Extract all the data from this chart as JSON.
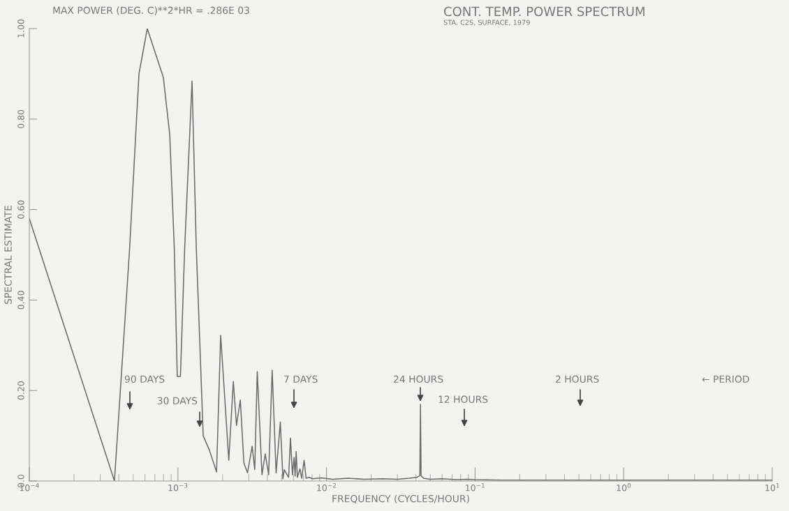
{
  "chart_data": {
    "type": "line",
    "title": "CONT. TEMP. POWER SPECTRUM",
    "subtitle": "STA. C2S, SURFACE, 1979",
    "xlabel": "FREQUENCY (CYCLES/HOUR)",
    "ylabel": "SPECTRAL ESTIMATE",
    "log": "x",
    "grid": false,
    "marker": "none",
    "line_style": "solid",
    "xlim": [
      0.0001,
      10
    ],
    "ylim": [
      0,
      1.0
    ],
    "xticks": [
      {
        "value": 0.0001,
        "label": "10$^{−4}$"
      },
      {
        "value": 0.001,
        "label": "10$^{−3}$"
      },
      {
        "value": 0.01,
        "label": "10$^{−2}$"
      },
      {
        "value": 0.1,
        "label": "10$^{−1}$"
      },
      {
        "value": 1,
        "label": "10$^{0}$"
      },
      {
        "value": 10,
        "label": "10$^{1}$"
      }
    ],
    "yticks": [
      {
        "value": 0,
        "label": "0.0"
      },
      {
        "value": 0.2,
        "label": "0.20"
      },
      {
        "value": 0.4,
        "label": "0.40"
      },
      {
        "value": 0.6,
        "label": "0.60"
      },
      {
        "value": 0.8,
        "label": "0.80"
      },
      {
        "value": 1.0,
        "label": "1.00"
      }
    ],
    "series": [
      {
        "color": "#6a6a6a",
        "x": [
          0.0001,
          0.000374,
          0.000472,
          0.000547,
          0.000622,
          0.000798,
          0.000881,
          0.000946,
          0.00099,
          0.00104,
          0.00111,
          0.001245,
          0.00133,
          0.00139,
          0.00148,
          0.00163,
          0.00182,
          0.00194,
          0.0022,
          0.00236,
          0.00248,
          0.00263,
          0.00278,
          0.00294,
          0.00316,
          0.00329,
          0.00342,
          0.00368,
          0.00387,
          0.00408,
          0.00431,
          0.00458,
          0.00489,
          0.00509,
          0.0052,
          0.00556,
          0.00572,
          0.0059,
          0.00605,
          0.00615,
          0.00625,
          0.00637,
          0.00663,
          0.00681,
          0.00707,
          0.00729,
          0.0076,
          0.0081,
          0.0092,
          0.011,
          0.014,
          0.018,
          0.024,
          0.03,
          0.036,
          0.0405,
          0.0425,
          0.0429,
          0.0433,
          0.045,
          0.05,
          0.06,
          0.075,
          0.09,
          0.1,
          0.15,
          0.2,
          0.3,
          0.5,
          1,
          2,
          5,
          10
        ],
        "values": [
          0.58,
          0.0,
          0.508,
          0.9,
          1.0,
          0.892,
          0.766,
          0.513,
          0.231,
          0.231,
          0.513,
          0.884,
          0.513,
          0.344,
          0.1,
          0.068,
          0.02,
          0.322,
          0.046,
          0.22,
          0.123,
          0.179,
          0.04,
          0.018,
          0.077,
          0.025,
          0.242,
          0.014,
          0.06,
          0.014,
          0.245,
          0.018,
          0.13,
          0.005,
          0.025,
          0.008,
          0.095,
          0.014,
          0.052,
          0.011,
          0.065,
          0.008,
          0.027,
          0.006,
          0.046,
          0.006,
          0.008,
          0.005,
          0.007,
          0.004,
          0.006,
          0.004,
          0.005,
          0.004,
          0.006,
          0.008,
          0.012,
          0.17,
          0.012,
          0.006,
          0.004,
          0.005,
          0.003,
          0.004,
          0.003,
          0.002,
          0.002,
          0.002,
          0.002,
          0.002,
          0.002,
          0.002,
          0.002
        ]
      }
    ],
    "annotations": [
      "MAX POWER (DEG. C)**2*HR = .286E 03",
      "← PERIOD",
      "90 DAYS",
      "30 DAYS",
      "7 DAYS",
      "24 HOURS",
      "12 HOURS",
      "2 HOURS"
    ]
  }
}
